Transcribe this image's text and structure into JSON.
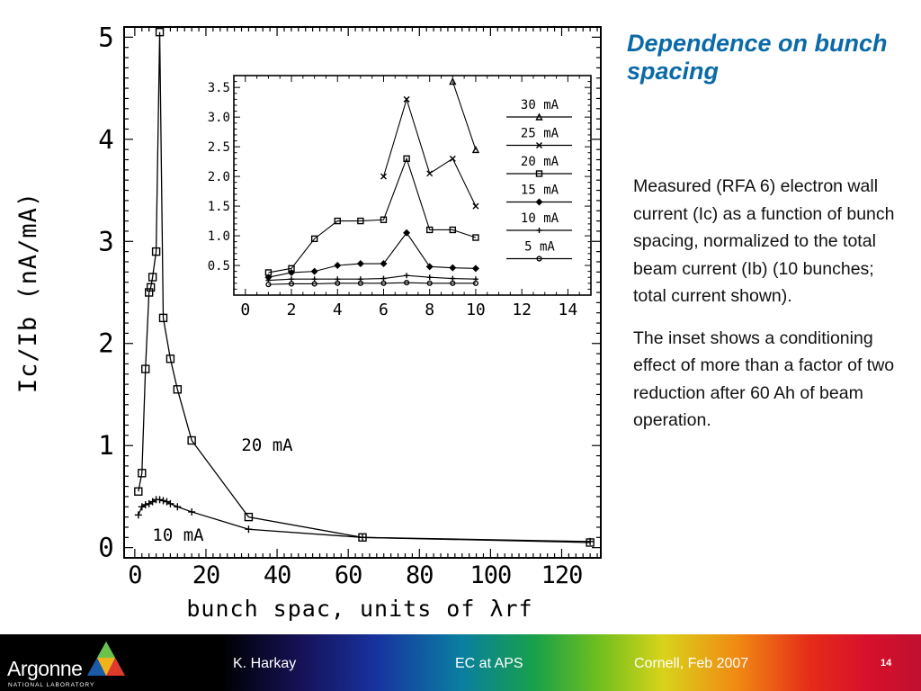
{
  "slide": {
    "title": "Dependence on bunch spacing",
    "paragraphs": [
      "Measured (RFA 6) electron wall current (Ic) as a function of bunch spacing, normalized to the total beam current (Ib) (10 bunches; total current shown).",
      "The inset shows a conditioning effect of more than a factor of two reduction after 60 Ah of beam operation."
    ]
  },
  "footer": {
    "logo_text": "Argonne",
    "logo_subtext": "NATIONAL LABORATORY",
    "author": "K. Harkay",
    "topic": "EC at APS",
    "venue": "Cornell, Feb 2007",
    "page": "14"
  },
  "colors": {
    "title": "#0a6aa8",
    "plot_ink": "#000000",
    "footer_bg": "#000000"
  },
  "chart_data": [
    {
      "type": "line",
      "title": "",
      "xlabel": "bunch spac, units of λrf",
      "ylabel": "Ic/Ib (nA/mA)",
      "xlim": [
        -3,
        131
      ],
      "ylim": [
        -0.1,
        5.1
      ],
      "xticks": [
        0,
        20,
        40,
        60,
        80,
        100,
        120
      ],
      "xtick_labels": [
        "0",
        "20",
        "40",
        "60",
        "80",
        "100",
        "120"
      ],
      "yticks": [
        0,
        1,
        2,
        3,
        4,
        5
      ],
      "ytick_labels": [
        "0",
        "1",
        "2",
        "3",
        "4",
        "5"
      ],
      "grid": false,
      "legend": "none",
      "series": [
        {
          "name": "20 mA",
          "marker": "square",
          "x": [
            1,
            2,
            3,
            4,
            4.5,
            5,
            6,
            7,
            8,
            10,
            12,
            16,
            32,
            64,
            128
          ],
          "y": [
            0.55,
            0.73,
            1.75,
            2.5,
            2.55,
            2.65,
            2.9,
            5.05,
            2.25,
            1.85,
            1.55,
            1.05,
            0.3,
            0.1,
            0.05
          ]
        },
        {
          "name": "10 mA",
          "marker": "plus",
          "x": [
            1,
            2,
            3,
            4,
            5,
            6,
            7,
            8,
            9,
            10,
            12,
            16,
            32,
            64,
            128
          ],
          "y": [
            0.32,
            0.4,
            0.42,
            0.43,
            0.45,
            0.47,
            0.47,
            0.46,
            0.45,
            0.43,
            0.4,
            0.35,
            0.18,
            0.1,
            0.06
          ]
        }
      ]
    },
    {
      "type": "line",
      "title": "",
      "xlabel": "",
      "ylabel": "",
      "xlim": [
        -0.5,
        15
      ],
      "ylim": [
        0,
        3.7
      ],
      "xticks": [
        0,
        2,
        4,
        6,
        8,
        10,
        12,
        14
      ],
      "xtick_labels": [
        "0",
        "2",
        "4",
        "6",
        "8",
        "10",
        "12",
        "14"
      ],
      "yticks": [
        0.5,
        1.0,
        1.5,
        2.0,
        2.5,
        3.0,
        3.5
      ],
      "ytick_labels": [
        "0.5",
        "1.0",
        "1.5",
        "2.0",
        "2.5",
        "3.0",
        "3.5"
      ],
      "grid": false,
      "legend": "top-right",
      "series": [
        {
          "name": "30 mA",
          "marker": "triangle",
          "x": [
            9,
            10
          ],
          "y": [
            3.6,
            2.45
          ]
        },
        {
          "name": "25 mA",
          "marker": "x",
          "x": [
            6,
            7,
            8,
            9,
            10
          ],
          "y": [
            2.0,
            3.3,
            2.05,
            2.3,
            1.5
          ]
        },
        {
          "name": "20 mA",
          "marker": "square",
          "x": [
            1,
            2,
            3,
            4,
            5,
            6,
            7,
            8,
            9,
            10
          ],
          "y": [
            0.38,
            0.45,
            0.95,
            1.25,
            1.25,
            1.27,
            2.3,
            1.1,
            1.1,
            0.97
          ]
        },
        {
          "name": "15 mA",
          "marker": "diamond",
          "x": [
            1,
            2,
            3,
            4,
            5,
            6,
            7,
            8,
            9,
            10
          ],
          "y": [
            0.3,
            0.38,
            0.4,
            0.5,
            0.53,
            0.53,
            1.05,
            0.48,
            0.46,
            0.45
          ]
        },
        {
          "name": "10 mA",
          "marker": "plus",
          "x": [
            1,
            2,
            3,
            4,
            5,
            6,
            7,
            8,
            9,
            10
          ],
          "y": [
            0.25,
            0.27,
            0.27,
            0.27,
            0.27,
            0.28,
            0.33,
            0.3,
            0.28,
            0.27
          ]
        },
        {
          "name": "5 mA",
          "marker": "circle",
          "x": [
            1,
            2,
            3,
            4,
            5,
            6,
            7,
            8,
            9,
            10
          ],
          "y": [
            0.18,
            0.19,
            0.19,
            0.2,
            0.2,
            0.2,
            0.21,
            0.2,
            0.2,
            0.2
          ]
        }
      ]
    }
  ]
}
